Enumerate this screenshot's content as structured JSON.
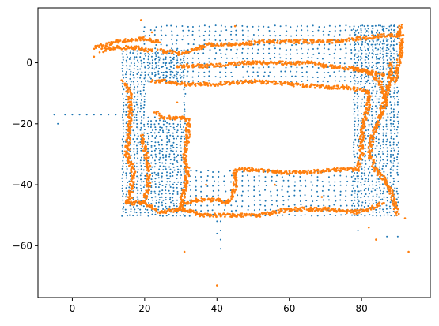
{
  "chart_data": {
    "type": "scatter",
    "title": "",
    "xlabel": "",
    "ylabel": "",
    "xlim": [
      -9.5,
      99
    ],
    "ylim": [
      -77,
      18
    ],
    "x_ticks": [
      0,
      20,
      40,
      60,
      80
    ],
    "y_ticks": [
      0,
      -20,
      -40,
      -60
    ],
    "x_tick_labels": [
      "0",
      "20",
      "40",
      "60",
      "80"
    ],
    "y_tick_labels": [
      "0",
      "−20",
      "−40",
      "−60"
    ],
    "grid": false,
    "legend": "none",
    "series": [
      {
        "color": "#1f77b4",
        "marker_size": 2,
        "description_type": "grid-sampled points covering the explored map",
        "regions": [
          {
            "x": [
              14,
              31
            ],
            "y": [
              -50,
              4
            ],
            "step": 1.0
          },
          {
            "x": [
              20,
              90
            ],
            "y": [
              -6,
              12
            ],
            "step": 1.5
          },
          {
            "x": [
              78,
              90
            ],
            "y": [
              -50,
              12
            ],
            "step": 1.0
          },
          {
            "x": [
              31,
              80
            ],
            "y": [
              -50,
              -34
            ],
            "step": 1.6
          }
        ],
        "points": [
          [
            -5,
            -17
          ],
          [
            -2,
            -17
          ],
          [
            0,
            -17
          ],
          [
            2,
            -17
          ],
          [
            4,
            -17
          ],
          [
            6,
            -17
          ],
          [
            8,
            -17
          ],
          [
            10,
            -17
          ],
          [
            12,
            -17
          ],
          [
            -4,
            -20
          ],
          [
            41,
            -52
          ],
          [
            41,
            -55
          ],
          [
            41,
            -58
          ],
          [
            41,
            -61
          ],
          [
            79,
            -55
          ],
          [
            87,
            -57
          ],
          [
            90,
            -57
          ],
          [
            89,
            12
          ],
          [
            86,
            11
          ],
          [
            83,
            10
          ],
          [
            40,
            -52
          ],
          [
            40,
            -56
          ]
        ]
      },
      {
        "color": "#ff7f0e",
        "marker_size": 2.6,
        "description_type": "dense boundary points along walls",
        "paths": [
          [
            [
              6,
              5
            ],
            [
              13,
              7
            ],
            [
              20,
              8
            ],
            [
              24,
              7
            ]
          ],
          [
            [
              8,
              4
            ],
            [
              12,
              5
            ],
            [
              18,
              5
            ],
            [
              22,
              4
            ]
          ],
          [
            [
              24,
              4
            ],
            [
              30,
              3
            ],
            [
              38,
              6
            ],
            [
              46,
              6
            ],
            [
              54,
              7
            ],
            [
              62,
              7
            ],
            [
              72,
              7
            ],
            [
              80,
              8
            ],
            [
              86,
              9
            ],
            [
              90,
              9
            ],
            [
              91,
              12
            ]
          ],
          [
            [
              29,
              -1
            ],
            [
              38,
              -1
            ],
            [
              48,
              0
            ],
            [
              58,
              0
            ],
            [
              66,
              0
            ],
            [
              70,
              -1
            ]
          ],
          [
            [
              70,
              -1
            ],
            [
              78,
              -2
            ],
            [
              82,
              -3
            ],
            [
              86,
              -4
            ]
          ],
          [
            [
              14,
              -6
            ],
            [
              16,
              -10
            ],
            [
              16,
              -20
            ],
            [
              15,
              -30
            ],
            [
              17,
              -36
            ],
            [
              16,
              -44
            ],
            [
              15,
              -46
            ],
            [
              20,
              -46
            ]
          ],
          [
            [
              20,
              -45
            ],
            [
              21,
              -40
            ],
            [
              21,
              -33
            ],
            [
              20,
              -28
            ],
            [
              19,
              -24
            ]
          ],
          [
            [
              22,
              -6
            ],
            [
              26,
              -6
            ],
            [
              30,
              -7
            ],
            [
              40,
              -7
            ],
            [
              50,
              -6
            ],
            [
              60,
              -7
            ],
            [
              70,
              -8
            ],
            [
              76,
              -8
            ]
          ],
          [
            [
              76,
              -8
            ],
            [
              80,
              -9
            ],
            [
              82,
              -10
            ],
            [
              82,
              -13
            ],
            [
              81,
              -18
            ],
            [
              80,
              -24
            ],
            [
              80,
              -30
            ],
            [
              79,
              -35
            ]
          ],
          [
            [
              79,
              -35
            ],
            [
              72,
              -35
            ],
            [
              64,
              -36
            ],
            [
              58,
              -36
            ],
            [
              50,
              -35
            ],
            [
              45,
              -35
            ],
            [
              45,
              -41
            ],
            [
              43,
              -46
            ],
            [
              40,
              -45
            ],
            [
              34,
              -45
            ],
            [
              31,
              -46
            ],
            [
              29,
              -48
            ]
          ],
          [
            [
              23,
              -16
            ],
            [
              25,
              -18
            ],
            [
              30,
              -18
            ],
            [
              32,
              -19
            ],
            [
              32,
              -25
            ],
            [
              31,
              -30
            ],
            [
              32,
              -36
            ],
            [
              31,
              -42
            ],
            [
              30,
              -47
            ]
          ],
          [
            [
              20,
              -46
            ],
            [
              24,
              -49
            ],
            [
              30,
              -48
            ],
            [
              36,
              -50
            ],
            [
              44,
              -50
            ],
            [
              52,
              -50
            ],
            [
              60,
              -48
            ],
            [
              70,
              -48
            ],
            [
              78,
              -49
            ],
            [
              82,
              -48
            ],
            [
              86,
              -46
            ]
          ],
          [
            [
              88,
              0
            ],
            [
              88,
              -4
            ],
            [
              87,
              -10
            ],
            [
              85,
              -18
            ],
            [
              83,
              -24
            ],
            [
              82,
              -30
            ],
            [
              84,
              -35
            ],
            [
              86,
              -38
            ],
            [
              88,
              -42
            ],
            [
              89,
              -46
            ],
            [
              90,
              -50
            ]
          ],
          [
            [
              91,
              10
            ],
            [
              91,
              4
            ],
            [
              90,
              -2
            ],
            [
              89,
              -6
            ]
          ],
          [
            [
              78,
              -2
            ],
            [
              82,
              -3
            ],
            [
              85,
              -6
            ],
            [
              86,
              -10
            ],
            [
              87,
              -14
            ]
          ]
        ],
        "points": [
          [
            19,
            14
          ],
          [
            31,
            -62
          ],
          [
            40,
            -73
          ],
          [
            93,
            -62
          ],
          [
            92,
            -51
          ],
          [
            84,
            -58
          ],
          [
            82,
            -54
          ],
          [
            29,
            -13
          ],
          [
            22,
            10
          ],
          [
            45,
            12
          ],
          [
            6,
            2
          ],
          [
            9,
            5
          ],
          [
            37,
            -40
          ],
          [
            56,
            -40
          ],
          [
            69,
            -44
          ]
        ]
      }
    ]
  }
}
